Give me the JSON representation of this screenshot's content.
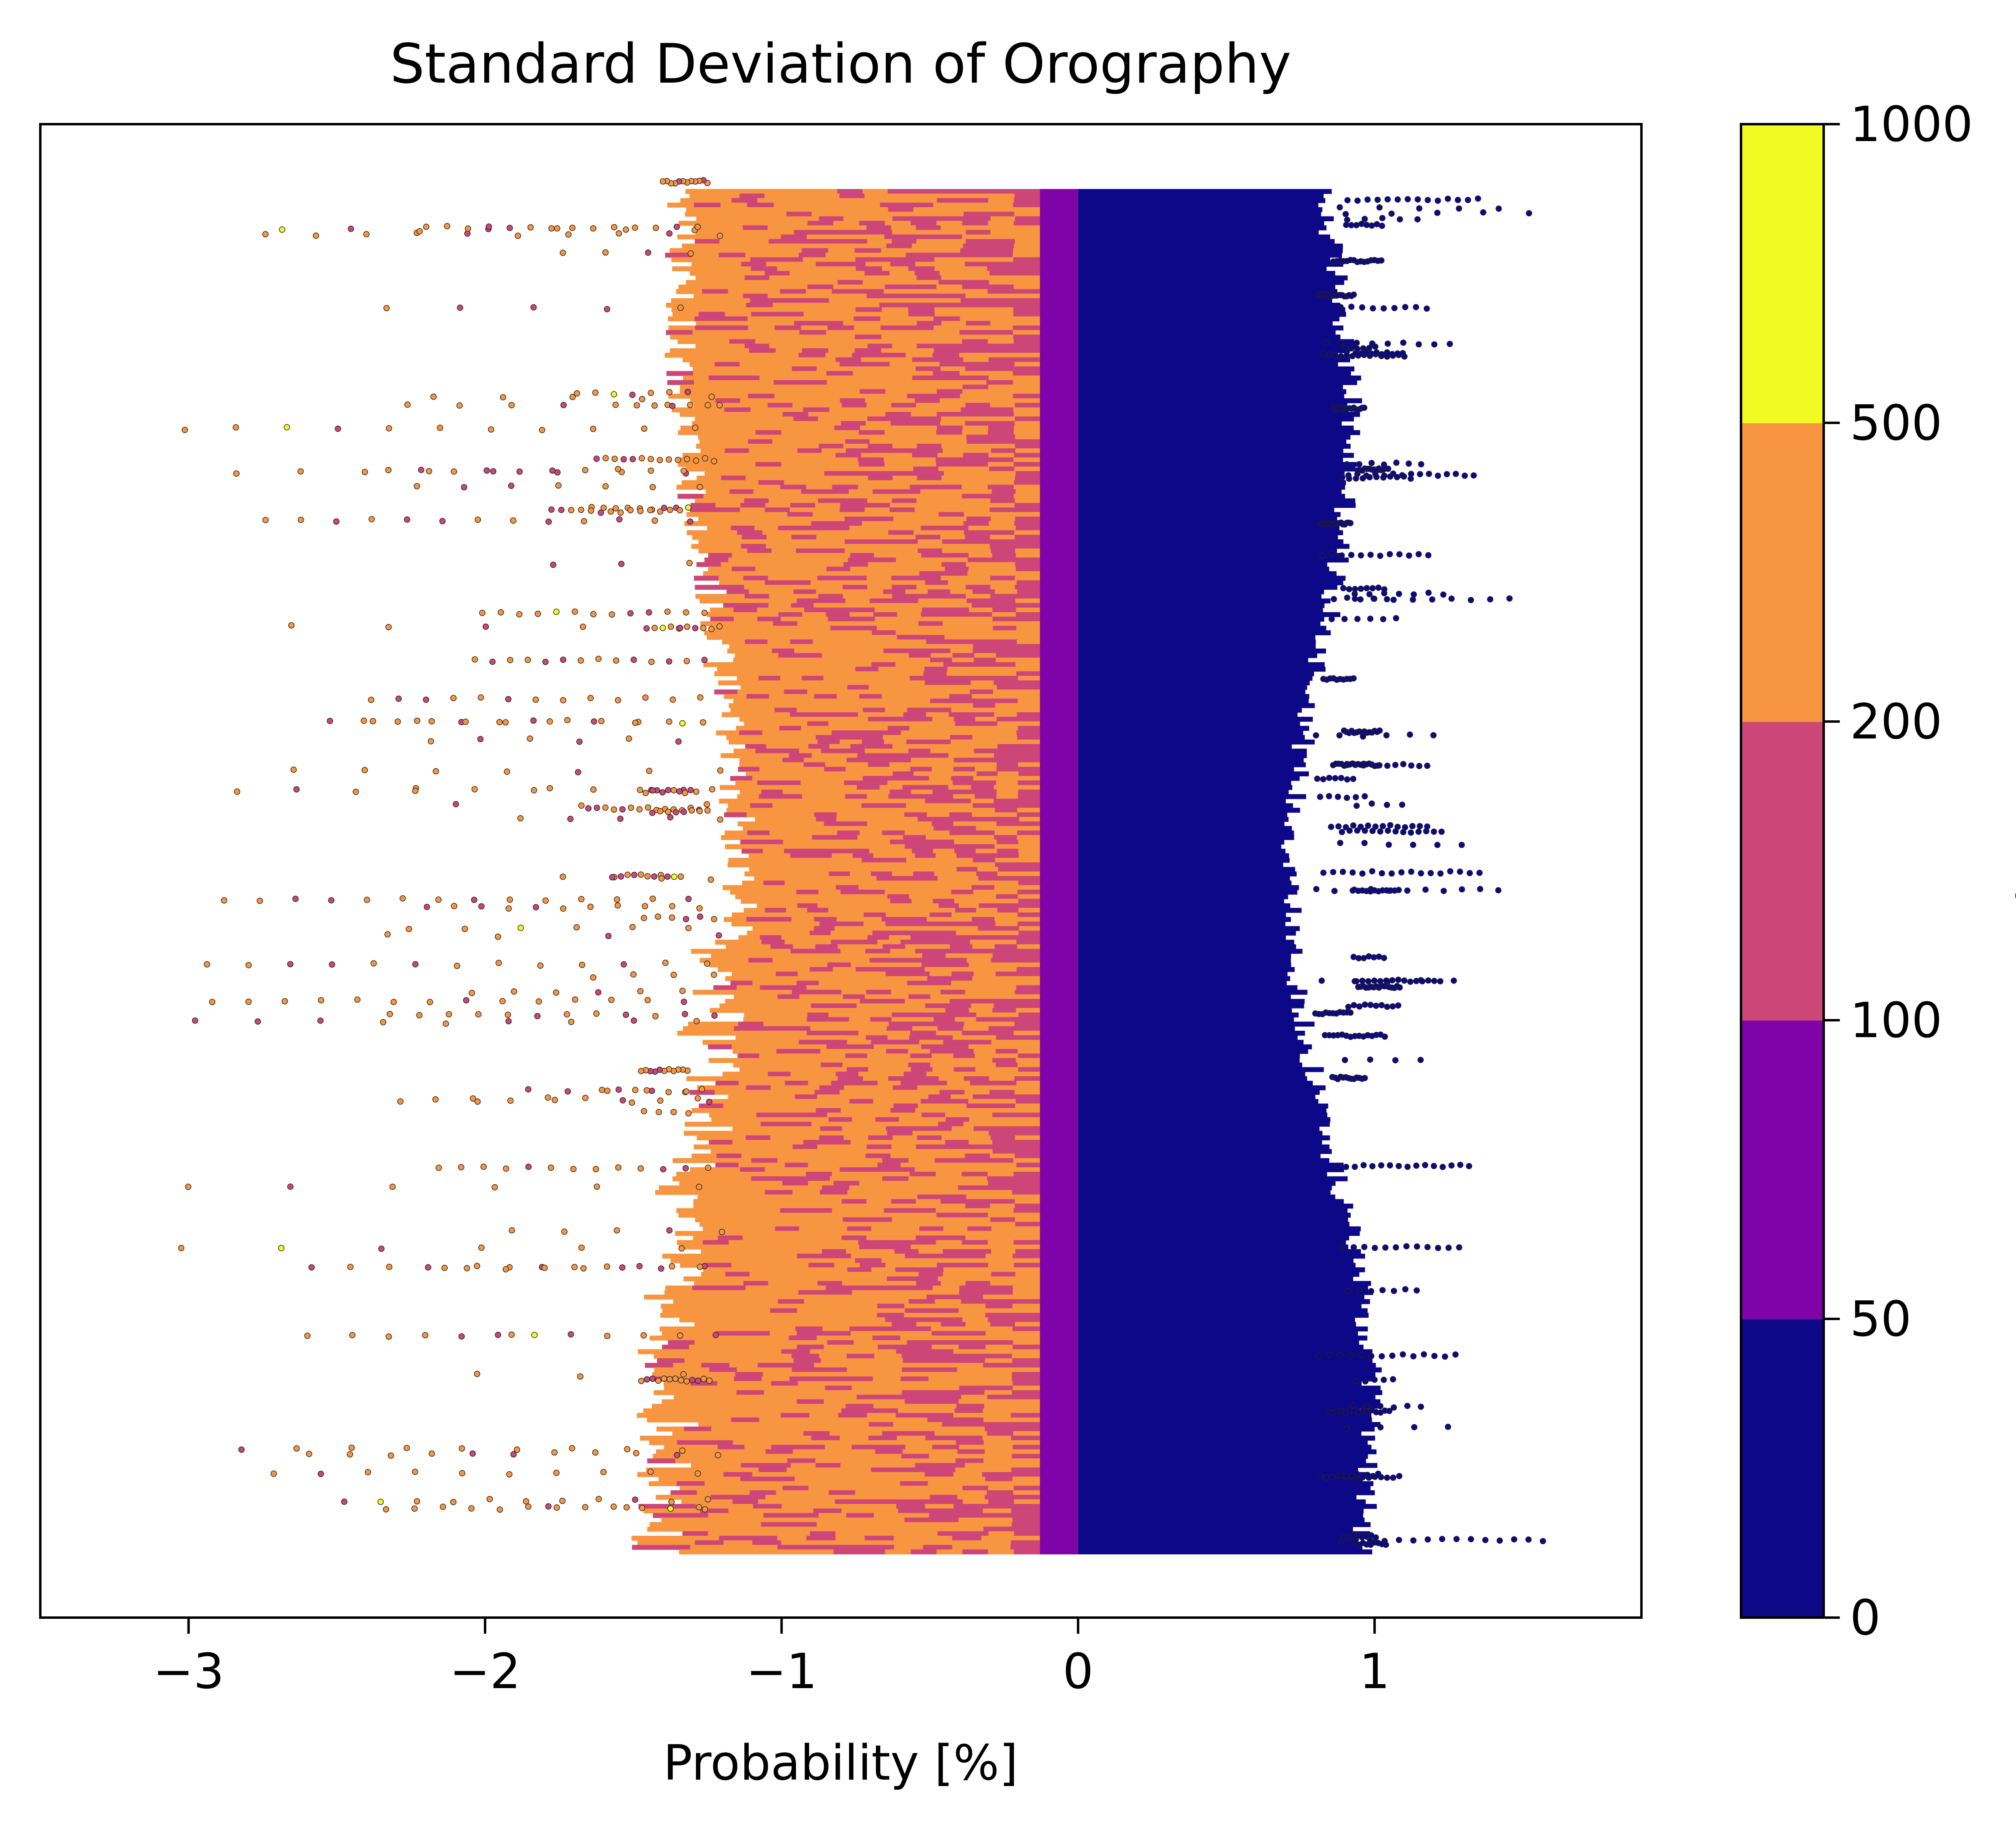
{
  "chart_data": {
    "type": "scatter",
    "title": "Standard Deviation of Orography",
    "xlabel": "Probability [%]",
    "ylabel": "",
    "xlim": [
      -3.5,
      1.9
    ],
    "xticks": [
      -3,
      -2,
      -1,
      0,
      1
    ],
    "xtick_labels": [
      "−3",
      "−2",
      "−1",
      "0",
      "1"
    ],
    "y_ticks_shown": false,
    "grid": false,
    "colorbar": {
      "label": "StdOrog",
      "boundaries": [
        0,
        50,
        100,
        200,
        500,
        1000
      ],
      "tick_labels": [
        "0",
        "50",
        "100",
        "200",
        "500",
        "1000"
      ],
      "colors": [
        "#0d0887",
        "#7e03a8",
        "#cc4778",
        "#f89540",
        "#f0f921"
      ]
    },
    "series": [
      {
        "class": "0-50",
        "color": "#0d0887",
        "core_x_range": [
          0.0,
          0.78
        ],
        "outlier_x_max": 1.68
      },
      {
        "class": "50-100",
        "color": "#7e03a8",
        "core_x_range": [
          -0.12,
          0.0
        ]
      },
      {
        "class": "100-200",
        "color": "#cc4778",
        "core_x_range": [
          -1.2,
          -0.12
        ],
        "outlier_x_min": -2.3
      },
      {
        "class": "200-500",
        "color": "#f89540",
        "core_x_range": [
          -1.3,
          -0.2
        ],
        "outlier_x_min": -3.25
      },
      {
        "class": "500-1000",
        "color": "#f0f921",
        "outlier_x_min": -2.7
      }
    ]
  }
}
